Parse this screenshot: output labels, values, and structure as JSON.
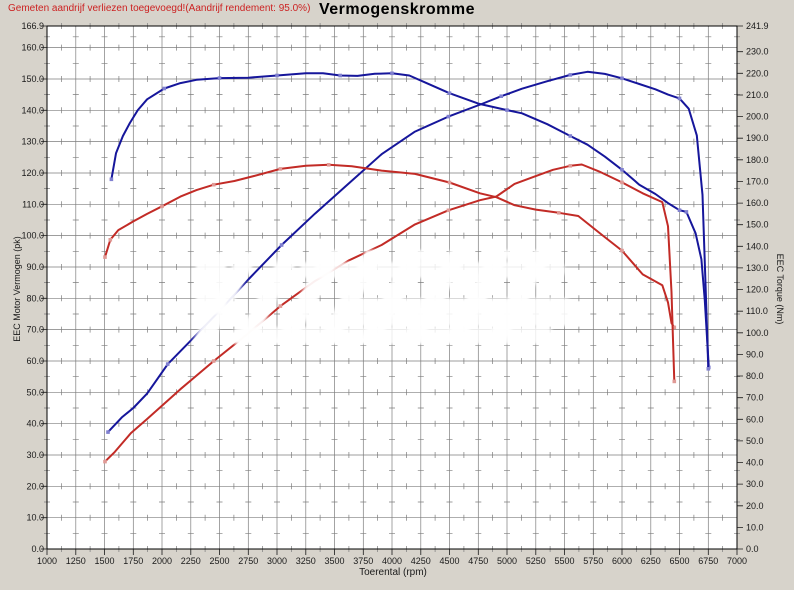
{
  "header": {
    "note": "Gemeten aandrijf verliezen toegevoegd!(Aandrijf rendement: 95.0%)",
    "title": "Vermogenskromme"
  },
  "colors": {
    "background": "#d7d3cb",
    "plot_background": "#ffffff",
    "grid": "#7d7d7d",
    "border": "#000000",
    "blue": "#16169b",
    "blue_marker": "#8080d0",
    "red": "#c22b26",
    "red_marker": "#e09a96",
    "note_red": "#cc2222",
    "text": "#1a1a1a"
  },
  "chart_data": {
    "type": "line",
    "title": "Vermogenskromme",
    "xlabel": "Toerental (rpm)",
    "ylabel_left": "EEC Motor Vermogen (pk)",
    "ylabel_right": "EEC Torque (Nm)",
    "x_range": [
      1000,
      7000
    ],
    "left_range": [
      0,
      166.9
    ],
    "right_range": [
      0,
      241.9
    ],
    "grid": "on",
    "legend": "none",
    "x_ticks": [
      "1000",
      "1250",
      "1500",
      "1750",
      "2000",
      "2250",
      "2500",
      "2750",
      "3000",
      "3250",
      "3500",
      "3750",
      "4000",
      "4250",
      "4500",
      "4750",
      "5000",
      "5250",
      "5500",
      "5750",
      "6000",
      "6250",
      "6500",
      "6750",
      "7000"
    ],
    "left_ticks": [
      "166.9",
      "160.0",
      "150.0",
      "140.0",
      "130.0",
      "120.0",
      "110.0",
      "100.0",
      "90.0",
      "80.0",
      "70.0",
      "60.0",
      "50.0",
      "40.0",
      "30.0",
      "20.0",
      "10.0",
      "0.0"
    ],
    "right_ticks": [
      "241.9",
      "230.0",
      "220.0",
      "210.0",
      "200.0",
      "190.0",
      "180.0",
      "170.0",
      "160.0",
      "150.0",
      "140.0",
      "130.0",
      "120.0",
      "110.0",
      "100.0",
      "90.0",
      "80.0",
      "70.0",
      "60.0",
      "50.0",
      "40.0",
      "30.0",
      "20.0",
      "10.0",
      "0.0"
    ],
    "series": [
      {
        "name": "blue-torque",
        "axis": "right",
        "unit": "Nm",
        "color_key": "blue",
        "marker_key": "blue_marker",
        "points": [
          [
            1560,
            171
          ],
          [
            1600,
            183
          ],
          [
            1660,
            191
          ],
          [
            1720,
            197
          ],
          [
            1790,
            203
          ],
          [
            1870,
            208
          ],
          [
            2020,
            213
          ],
          [
            2160,
            215.5
          ],
          [
            2300,
            217
          ],
          [
            2500,
            217.8
          ],
          [
            2750,
            218
          ],
          [
            3000,
            219
          ],
          [
            3250,
            220
          ],
          [
            3400,
            220
          ],
          [
            3550,
            219
          ],
          [
            3700,
            218.8
          ],
          [
            3850,
            219.8
          ],
          [
            4000,
            220
          ],
          [
            4150,
            219
          ],
          [
            4300,
            215.5
          ],
          [
            4500,
            210.8
          ],
          [
            4750,
            206
          ],
          [
            5000,
            203
          ],
          [
            5130,
            201.5
          ],
          [
            5350,
            196.5
          ],
          [
            5550,
            191
          ],
          [
            5700,
            187
          ],
          [
            5850,
            181.5
          ],
          [
            6000,
            175.4
          ],
          [
            6150,
            168.5
          ],
          [
            6290,
            164.2
          ],
          [
            6400,
            160
          ],
          [
            6500,
            156.7
          ],
          [
            6560,
            155.9
          ],
          [
            6640,
            146
          ],
          [
            6690,
            134
          ],
          [
            6720,
            115
          ],
          [
            6755,
            84
          ]
        ]
      },
      {
        "name": "blue-power",
        "axis": "left",
        "unit": "pk",
        "color_key": "blue",
        "marker_key": "blue_marker",
        "points": [
          [
            1530,
            37.3
          ],
          [
            1650,
            42
          ],
          [
            1750,
            45
          ],
          [
            1870,
            49.6
          ],
          [
            2050,
            59
          ],
          [
            2250,
            66.5
          ],
          [
            2500,
            76
          ],
          [
            2750,
            86
          ],
          [
            3040,
            97
          ],
          [
            3330,
            107
          ],
          [
            3620,
            116.5
          ],
          [
            3910,
            126
          ],
          [
            4200,
            133.2
          ],
          [
            4490,
            138
          ],
          [
            4780,
            142
          ],
          [
            4950,
            144.5
          ],
          [
            5130,
            146.9
          ],
          [
            5350,
            149.3
          ],
          [
            5550,
            151.3
          ],
          [
            5700,
            152.3
          ],
          [
            5850,
            151.6
          ],
          [
            6000,
            150.2
          ],
          [
            6150,
            148.4
          ],
          [
            6290,
            146.7
          ],
          [
            6400,
            145
          ],
          [
            6500,
            143.8
          ],
          [
            6580,
            140.5
          ],
          [
            6650,
            132
          ],
          [
            6700,
            113
          ],
          [
            6730,
            80
          ],
          [
            6750,
            57.5
          ]
        ]
      },
      {
        "name": "red-torque",
        "axis": "right",
        "unit": "Nm",
        "color_key": "red",
        "marker_key": "red_marker",
        "points": [
          [
            1504,
            135
          ],
          [
            1550,
            143
          ],
          [
            1620,
            147.5
          ],
          [
            1750,
            151.5
          ],
          [
            1870,
            155
          ],
          [
            2000,
            158.5
          ],
          [
            2160,
            163
          ],
          [
            2300,
            166
          ],
          [
            2450,
            168.5
          ],
          [
            2630,
            170.2
          ],
          [
            2800,
            172.5
          ],
          [
            3030,
            175.8
          ],
          [
            3250,
            177.3
          ],
          [
            3450,
            177.7
          ],
          [
            3650,
            177
          ],
          [
            3910,
            175
          ],
          [
            4200,
            173.5
          ],
          [
            4500,
            169.5
          ],
          [
            4765,
            164.5
          ],
          [
            4908,
            162.7
          ],
          [
            5065,
            159
          ],
          [
            5250,
            157
          ],
          [
            5450,
            155.5
          ],
          [
            5620,
            154
          ],
          [
            5820,
            145.5
          ],
          [
            6000,
            138
          ],
          [
            6180,
            127
          ],
          [
            6350,
            122
          ],
          [
            6400,
            114
          ],
          [
            6430,
            104.5
          ],
          [
            6455,
            102.5
          ]
        ]
      },
      {
        "name": "red-power",
        "axis": "left",
        "unit": "pk",
        "color_key": "red",
        "marker_key": "red_marker",
        "points": [
          [
            1504,
            27.9
          ],
          [
            1590,
            31
          ],
          [
            1730,
            37
          ],
          [
            1870,
            41.5
          ],
          [
            2160,
            51
          ],
          [
            2450,
            60
          ],
          [
            2740,
            68.5
          ],
          [
            3030,
            77.5
          ],
          [
            3330,
            85.5
          ],
          [
            3620,
            92
          ],
          [
            3910,
            97
          ],
          [
            4200,
            103.6
          ],
          [
            4490,
            108.1
          ],
          [
            4765,
            111.3
          ],
          [
            4908,
            112.5
          ],
          [
            5065,
            116.5
          ],
          [
            5250,
            119
          ],
          [
            5400,
            121
          ],
          [
            5550,
            122.3
          ],
          [
            5650,
            122.7
          ],
          [
            5800,
            120.5
          ],
          [
            6000,
            117
          ],
          [
            6180,
            113.5
          ],
          [
            6350,
            110.7
          ],
          [
            6400,
            103
          ],
          [
            6430,
            82
          ],
          [
            6455,
            53.5
          ]
        ]
      }
    ]
  }
}
